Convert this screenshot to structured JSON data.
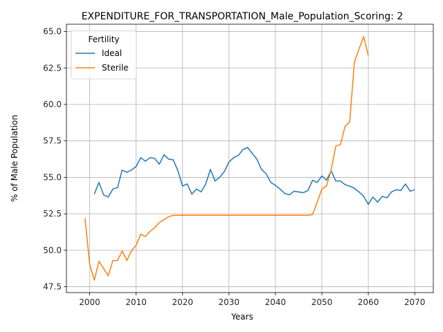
{
  "chart_data": {
    "type": "line",
    "title": "EXPENDITURE_FOR_TRANSPORTATION_Male_Population_Scoring: 2",
    "xlabel": "Years",
    "ylabel": "% of Male Population",
    "xlim": [
      1995,
      2074
    ],
    "ylim": [
      47.1,
      65.5
    ],
    "xticks": [
      2000,
      2010,
      2020,
      2030,
      2040,
      2050,
      2060,
      2070
    ],
    "yticks": [
      47.5,
      50.0,
      52.5,
      55.0,
      57.5,
      60.0,
      62.5,
      65.0
    ],
    "xtick_labels": [
      "2000",
      "2010",
      "2020",
      "2030",
      "2040",
      "2050",
      "2060",
      "2070"
    ],
    "ytick_labels": [
      "47.5",
      "50.0",
      "52.5",
      "55.0",
      "57.5",
      "60.0",
      "62.5",
      "65.0"
    ],
    "grid": true,
    "legend": {
      "title": "Fertility",
      "placement": "top-left"
    },
    "series": [
      {
        "name": "Ideal",
        "color": "#1f77b4",
        "x": [
          2001,
          2002,
          2003,
          2004,
          2005,
          2006,
          2007,
          2008,
          2009,
          2010,
          2011,
          2012,
          2013,
          2014,
          2015,
          2016,
          2017,
          2018,
          2019,
          2020,
          2021,
          2022,
          2023,
          2024,
          2025,
          2026,
          2027,
          2028,
          2029,
          2030,
          2031,
          2032,
          2033,
          2034,
          2035,
          2036,
          2037,
          2038,
          2039,
          2040,
          2041,
          2042,
          2043,
          2044,
          2045,
          2046,
          2047,
          2048,
          2049,
          2050,
          2051,
          2052,
          2053,
          2054,
          2055,
          2056,
          2057,
          2058,
          2059,
          2060,
          2061,
          2062,
          2063,
          2064,
          2065,
          2066,
          2067,
          2068,
          2069,
          2070
        ],
        "values": [
          53.85,
          54.65,
          53.8,
          53.65,
          54.2,
          54.3,
          55.5,
          55.35,
          55.5,
          55.75,
          56.35,
          56.1,
          56.35,
          56.3,
          55.9,
          56.55,
          56.25,
          56.2,
          55.45,
          54.4,
          54.55,
          53.85,
          54.2,
          54.0,
          54.55,
          55.55,
          54.75,
          55.0,
          55.4,
          56.05,
          56.35,
          56.5,
          56.9,
          57.05,
          56.65,
          56.25,
          55.55,
          55.25,
          54.65,
          54.45,
          54.2,
          53.9,
          53.8,
          54.05,
          54.0,
          53.95,
          54.1,
          54.8,
          54.65,
          55.1,
          54.8,
          55.45,
          54.75,
          54.75,
          54.5,
          54.4,
          54.25,
          54.0,
          53.7,
          53.15,
          53.65,
          53.3,
          53.7,
          53.6,
          54.0,
          54.15,
          54.1,
          54.55,
          54.05,
          54.15
        ]
      },
      {
        "name": "Sterile",
        "color": "#ff7f0e",
        "x": [
          1999,
          2000,
          2001,
          2002,
          2003,
          2004,
          2005,
          2006,
          2007,
          2008,
          2009,
          2010,
          2011,
          2012,
          2013,
          2014,
          2015,
          2016,
          2017,
          2018,
          2019,
          2020,
          2021,
          2022,
          2023,
          2024,
          2025,
          2026,
          2027,
          2028,
          2029,
          2030,
          2031,
          2032,
          2033,
          2034,
          2035,
          2036,
          2037,
          2038,
          2039,
          2040,
          2041,
          2042,
          2043,
          2044,
          2045,
          2046,
          2047,
          2048,
          2049,
          2050,
          2051,
          2052,
          2053,
          2054,
          2055,
          2056,
          2057,
          2058,
          2059,
          2060
        ],
        "values": [
          52.2,
          49.05,
          47.95,
          49.25,
          48.75,
          48.25,
          49.3,
          49.3,
          49.95,
          49.3,
          49.95,
          50.35,
          51.1,
          50.95,
          51.3,
          51.55,
          51.9,
          52.1,
          52.3,
          52.4,
          52.4,
          52.4,
          52.4,
          52.4,
          52.4,
          52.4,
          52.4,
          52.4,
          52.4,
          52.4,
          52.4,
          52.4,
          52.4,
          52.4,
          52.4,
          52.4,
          52.4,
          52.4,
          52.4,
          52.4,
          52.4,
          52.4,
          52.4,
          52.4,
          52.4,
          52.4,
          52.4,
          52.4,
          52.4,
          52.45,
          53.3,
          54.2,
          54.4,
          55.5,
          57.15,
          57.25,
          58.5,
          58.8,
          62.9,
          63.8,
          64.65,
          63.35
        ]
      }
    ]
  }
}
